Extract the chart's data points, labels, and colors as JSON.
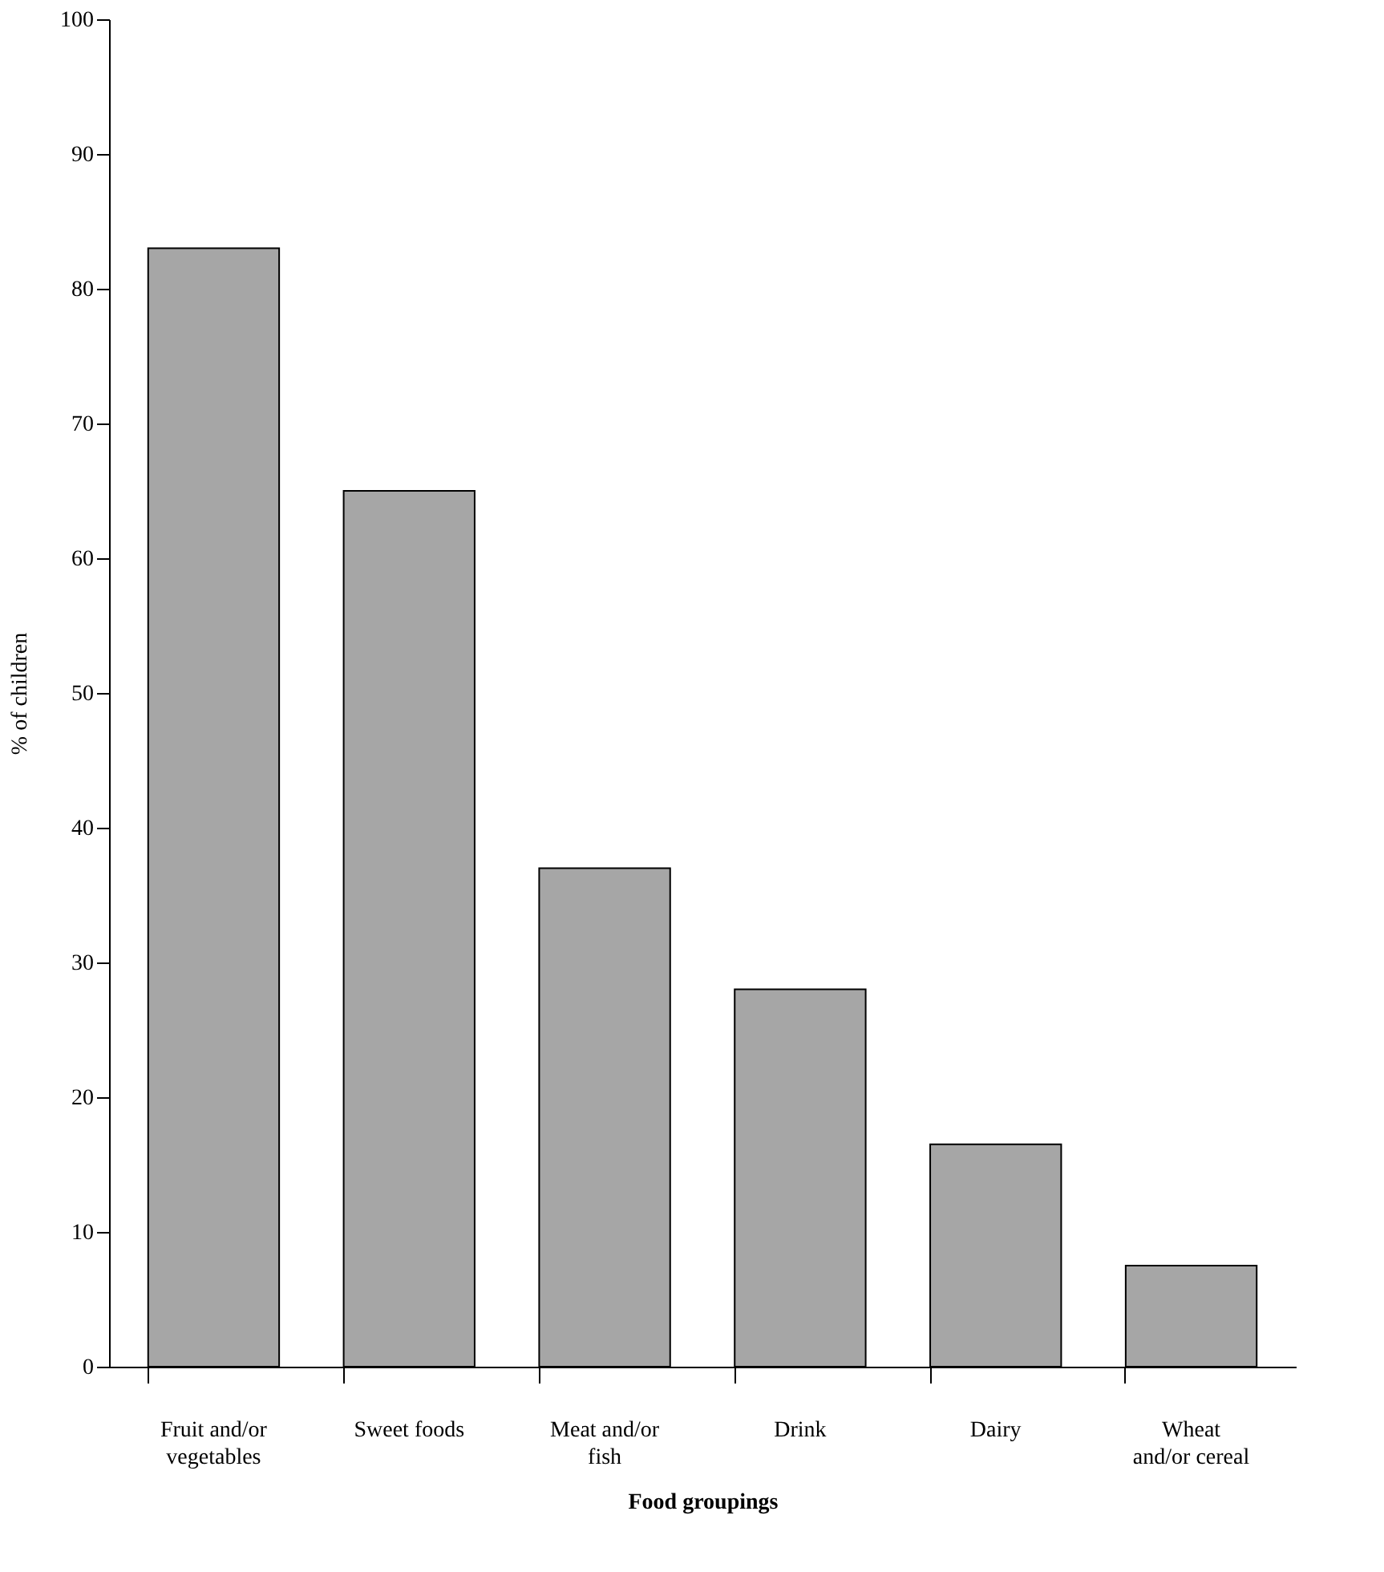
{
  "chart_data": {
    "type": "bar",
    "xlabel": "Food groupings",
    "ylabel": "% of children",
    "categories": [
      "Fruit and/or\nvegetables",
      "Sweet foods",
      "Meat and/or\nfish",
      "Drink",
      "Dairy",
      "Wheat\nand/or cereal"
    ],
    "values": [
      83,
      65,
      37,
      28,
      16.5,
      7.5
    ],
    "color": "#a6a6a6",
    "ylim": [
      0,
      100
    ],
    "yticks": [
      0,
      10,
      20,
      30,
      40,
      50,
      60,
      70,
      80,
      90,
      100
    ],
    "grid": false
  }
}
